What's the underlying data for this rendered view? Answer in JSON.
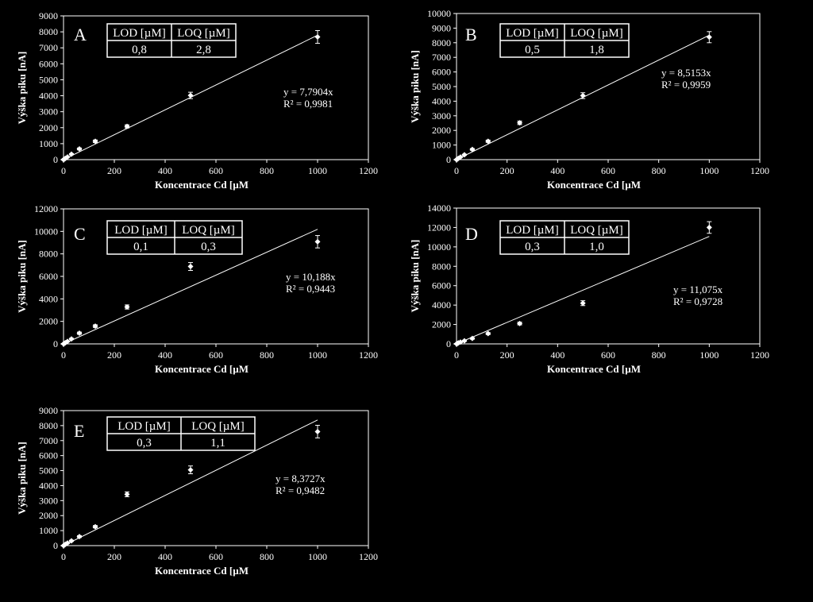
{
  "chart_data": [
    {
      "type": "scatter",
      "panel": "A",
      "xlabel": "Koncentrace Cd [µM",
      "ylabel": "Výška piku [nA]",
      "xlim": [
        0,
        1200
      ],
      "ylim": [
        0,
        9000
      ],
      "xticks": [
        0,
        200,
        400,
        600,
        800,
        1000,
        1200
      ],
      "yticks": [
        0,
        1000,
        2000,
        3000,
        4000,
        5000,
        6000,
        7000,
        8000,
        9000
      ],
      "points": [
        {
          "x": 0,
          "y": 0,
          "err": 30
        },
        {
          "x": 3.9,
          "y": 40,
          "err": 30
        },
        {
          "x": 7.8,
          "y": 80,
          "err": 30
        },
        {
          "x": 15.6,
          "y": 170,
          "err": 30
        },
        {
          "x": 31.25,
          "y": 340,
          "err": 40
        },
        {
          "x": 62.5,
          "y": 670,
          "err": 60
        },
        {
          "x": 125,
          "y": 1150,
          "err": 80
        },
        {
          "x": 250,
          "y": 2080,
          "err": 100
        },
        {
          "x": 500,
          "y": 4020,
          "err": 200
        },
        {
          "x": 1000,
          "y": 7680,
          "err": 400
        }
      ],
      "trendline": {
        "slope": 7.7904,
        "x_end": 1000
      },
      "equation": "y = 7,7904x",
      "r2": "R² = 0,9981",
      "table": {
        "headers": [
          "LOD [µM]",
          "LOQ [µM]"
        ],
        "values": [
          "0,8",
          "2,8"
        ]
      }
    },
    {
      "type": "scatter",
      "panel": "B",
      "xlabel": "Koncentrace Cd [µM",
      "ylabel": "Výška piku [nA]",
      "xlim": [
        0,
        1200
      ],
      "ylim": [
        0,
        10000
      ],
      "xticks": [
        0,
        200,
        400,
        600,
        800,
        1000,
        1200
      ],
      "yticks": [
        0,
        1000,
        2000,
        3000,
        4000,
        5000,
        6000,
        7000,
        8000,
        9000,
        10000
      ],
      "points": [
        {
          "x": 0,
          "y": 0,
          "err": 30
        },
        {
          "x": 3.9,
          "y": 40,
          "err": 30
        },
        {
          "x": 7.8,
          "y": 90,
          "err": 30
        },
        {
          "x": 15.6,
          "y": 180,
          "err": 30
        },
        {
          "x": 31.25,
          "y": 330,
          "err": 40
        },
        {
          "x": 62.5,
          "y": 700,
          "err": 60
        },
        {
          "x": 125,
          "y": 1260,
          "err": 80
        },
        {
          "x": 250,
          "y": 2520,
          "err": 120
        },
        {
          "x": 500,
          "y": 4380,
          "err": 200
        },
        {
          "x": 1000,
          "y": 8380,
          "err": 380
        }
      ],
      "trendline": {
        "slope": 8.5153,
        "x_end": 1000
      },
      "equation": "y = 8,5153x",
      "r2": "R² = 0,9959",
      "table": {
        "headers": [
          "LOD [µM]",
          "LOQ [µM]"
        ],
        "values": [
          "0,5",
          "1,8"
        ]
      }
    },
    {
      "type": "scatter",
      "panel": "C",
      "xlabel": "Koncentrace Cd [µM",
      "ylabel": "Výška piku [nA]",
      "xlim": [
        0,
        1200
      ],
      "ylim": [
        0,
        12000
      ],
      "xticks": [
        0,
        200,
        400,
        600,
        800,
        1000,
        1200
      ],
      "yticks": [
        0,
        2000,
        4000,
        6000,
        8000,
        10000,
        12000
      ],
      "points": [
        {
          "x": 0,
          "y": 0,
          "err": 40
        },
        {
          "x": 3.9,
          "y": 50,
          "err": 40
        },
        {
          "x": 7.8,
          "y": 110,
          "err": 40
        },
        {
          "x": 15.6,
          "y": 220,
          "err": 40
        },
        {
          "x": 31.25,
          "y": 440,
          "err": 60
        },
        {
          "x": 62.5,
          "y": 950,
          "err": 100
        },
        {
          "x": 125,
          "y": 1580,
          "err": 120
        },
        {
          "x": 250,
          "y": 3280,
          "err": 180
        },
        {
          "x": 500,
          "y": 6880,
          "err": 350
        },
        {
          "x": 1000,
          "y": 9080,
          "err": 550
        }
      ],
      "trendline": {
        "slope": 10.188,
        "x_end": 1000
      },
      "equation": "y = 10,188x",
      "r2": "R² = 0,9443",
      "table": {
        "headers": [
          "LOD [µM]",
          "LOQ [µM]"
        ],
        "values": [
          "0,1",
          "0,3"
        ]
      }
    },
    {
      "type": "scatter",
      "panel": "D",
      "xlabel": "Koncentrace Cd [µM",
      "ylabel": "Výška piku [nA]",
      "xlim": [
        0,
        1200
      ],
      "ylim": [
        0,
        14000
      ],
      "xticks": [
        0,
        200,
        400,
        600,
        800,
        1000,
        1200
      ],
      "yticks": [
        0,
        2000,
        4000,
        6000,
        8000,
        10000,
        12000,
        14000
      ],
      "points": [
        {
          "x": 0,
          "y": 0,
          "err": 40
        },
        {
          "x": 3.9,
          "y": 50,
          "err": 40
        },
        {
          "x": 7.8,
          "y": 100,
          "err": 40
        },
        {
          "x": 15.6,
          "y": 180,
          "err": 40
        },
        {
          "x": 31.25,
          "y": 320,
          "err": 60
        },
        {
          "x": 62.5,
          "y": 560,
          "err": 80
        },
        {
          "x": 125,
          "y": 1060,
          "err": 100
        },
        {
          "x": 250,
          "y": 2100,
          "err": 140
        },
        {
          "x": 500,
          "y": 4200,
          "err": 250
        },
        {
          "x": 1000,
          "y": 12000,
          "err": 600
        }
      ],
      "trendline": {
        "slope": 11.075,
        "x_end": 1000
      },
      "equation": "y = 11,075x",
      "r2": "R² = 0,9728",
      "table": {
        "headers": [
          "LOD [µM]",
          "LOQ [µM]"
        ],
        "values": [
          "0,3",
          "1,0"
        ]
      }
    },
    {
      "type": "scatter",
      "panel": "E",
      "xlabel": "Koncentrace Cd [µM",
      "ylabel": "Výška piku [nA]",
      "xlim": [
        0,
        1200
      ],
      "ylim": [
        0,
        9000
      ],
      "xticks": [
        0,
        200,
        400,
        600,
        800,
        1000,
        1200
      ],
      "yticks": [
        0,
        1000,
        2000,
        3000,
        4000,
        5000,
        6000,
        7000,
        8000,
        9000
      ],
      "points": [
        {
          "x": 0,
          "y": 0,
          "err": 30
        },
        {
          "x": 3.9,
          "y": 40,
          "err": 30
        },
        {
          "x": 7.8,
          "y": 90,
          "err": 30
        },
        {
          "x": 15.6,
          "y": 170,
          "err": 30
        },
        {
          "x": 31.25,
          "y": 320,
          "err": 40
        },
        {
          "x": 62.5,
          "y": 600,
          "err": 60
        },
        {
          "x": 125,
          "y": 1260,
          "err": 80
        },
        {
          "x": 250,
          "y": 3420,
          "err": 160
        },
        {
          "x": 500,
          "y": 5050,
          "err": 260
        },
        {
          "x": 1000,
          "y": 7600,
          "err": 420
        }
      ],
      "trendline": {
        "slope": 8.3727,
        "x_end": 1000
      },
      "equation": "y = 8,3727x",
      "r2": "R² = 0,9482",
      "table": {
        "headers": [
          "LOD [µM]",
          "LOQ [µM]"
        ],
        "values": [
          "0,3",
          "1,1"
        ]
      }
    }
  ]
}
